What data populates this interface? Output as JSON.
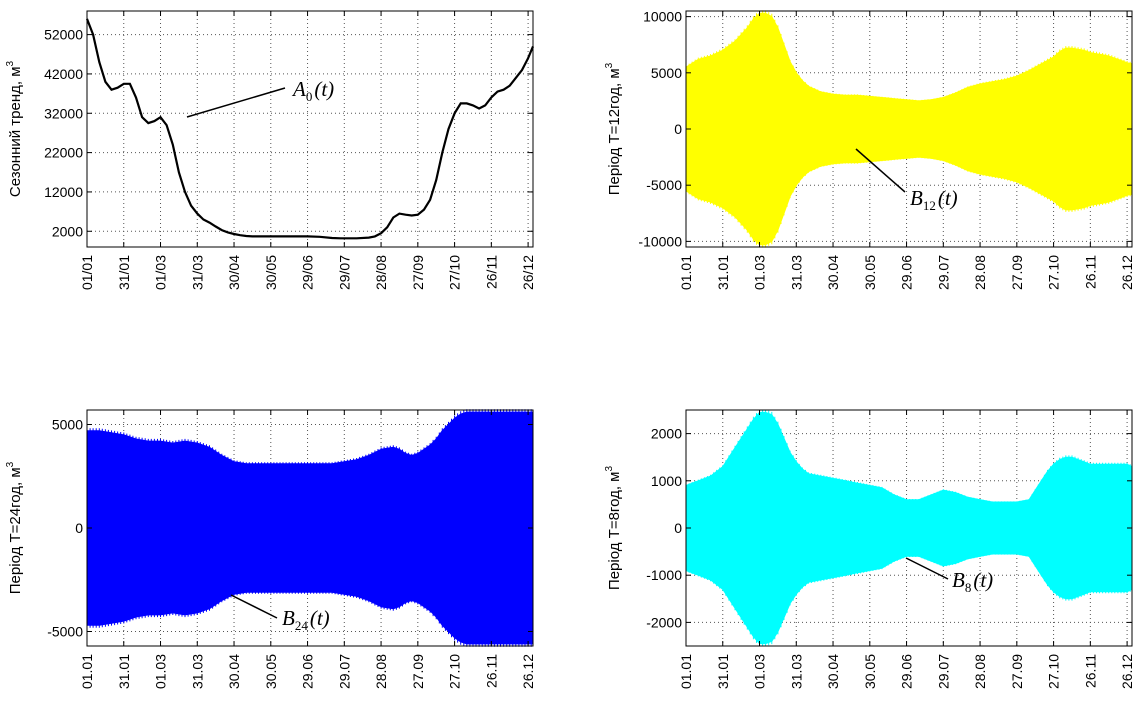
{
  "chart_data": [
    {
      "type": "line",
      "ylabel": "Сезонний тренд, м",
      "ylabel_sup": "3",
      "yticks": [
        2000,
        12000,
        22000,
        32000,
        42000,
        52000
      ],
      "ylim": [
        -2000,
        58000
      ],
      "xticks": [
        "01/01",
        "31/01",
        "01/03",
        "31/03",
        "30/04",
        "30/05",
        "29/06",
        "29/07",
        "28/08",
        "27/09",
        "27/10",
        "26/11",
        "26/12"
      ],
      "color": "#000000",
      "annotation": {
        "text": "A",
        "sub": "0",
        "arg": "(t)"
      },
      "series": [
        {
          "x": [
            0,
            5,
            10,
            15,
            20,
            25,
            30,
            35,
            40,
            45,
            50,
            55,
            60,
            65,
            70,
            75,
            80,
            85,
            90,
            95,
            100,
            105,
            110,
            115,
            120,
            125,
            130,
            135,
            140,
            145,
            150,
            160,
            170,
            180,
            190,
            200,
            207,
            212,
            220,
            230,
            235,
            240,
            245,
            250,
            255,
            260,
            265,
            270,
            275,
            280,
            285,
            290,
            295,
            300,
            305,
            310,
            315,
            320,
            325,
            330,
            335,
            340,
            345,
            350,
            355,
            360,
            364
          ],
          "y": [
            56000,
            52000,
            45000,
            40000,
            38000,
            38500,
            39500,
            39500,
            36000,
            31000,
            29500,
            30000,
            31000,
            29000,
            24000,
            17000,
            12000,
            8500,
            6500,
            5000,
            4200,
            3200,
            2300,
            1700,
            1300,
            1000,
            800,
            700,
            700,
            700,
            700,
            700,
            700,
            700,
            600,
            300,
            200,
            200,
            200,
            400,
            700,
            1500,
            3000,
            5500,
            6500,
            6200,
            6000,
            6200,
            7500,
            10000,
            15000,
            22000,
            28000,
            32000,
            34500,
            34500,
            34000,
            33200,
            34000,
            36000,
            37500,
            38000,
            39000,
            41000,
            43000,
            46000,
            49000
          ]
        }
      ]
    },
    {
      "type": "area",
      "ylabel": "Період Т=12год, м",
      "ylabel_sup": "3",
      "yticks": [
        -10000,
        -5000,
        0,
        5000,
        10000
      ],
      "ylim": [
        -10500,
        10500
      ],
      "xticks": [
        "01.01",
        "31.01",
        "01.03",
        "31.03",
        "30.04",
        "30.05",
        "29.06",
        "29.07",
        "28.08",
        "27.09",
        "27.10",
        "26.11",
        "26.12"
      ],
      "color": "#ffff00",
      "annotation": {
        "text": "B",
        "sub": "12",
        "arg": "(t)"
      },
      "envelope": {
        "x": [
          0,
          10,
          20,
          30,
          40,
          50,
          55,
          60,
          65,
          70,
          75,
          80,
          85,
          90,
          95,
          100,
          110,
          120,
          130,
          140,
          150,
          160,
          170,
          180,
          190,
          200,
          210,
          220,
          230,
          240,
          250,
          260,
          270,
          280,
          290,
          300,
          305,
          310,
          315,
          320,
          325,
          330,
          335,
          340,
          345,
          350,
          355,
          360,
          364
        ],
        "y": [
          5500,
          6200,
          6500,
          7000,
          7800,
          9000,
          9800,
          10300,
          10300,
          10000,
          9000,
          7500,
          6000,
          5000,
          4300,
          3800,
          3300,
          3100,
          3000,
          3000,
          2900,
          2800,
          2700,
          2600,
          2500,
          2600,
          2800,
          3200,
          3700,
          4000,
          4200,
          4400,
          4700,
          5200,
          5800,
          6400,
          6900,
          7200,
          7200,
          7100,
          7000,
          6800,
          6700,
          6600,
          6500,
          6300,
          6100,
          5900,
          5800
        ]
      }
    },
    {
      "type": "area",
      "ylabel": "Період Т=24год, м",
      "ylabel_sup": "3",
      "yticks": [
        -5000,
        0,
        5000
      ],
      "ylim": [
        -5700,
        5700
      ],
      "xticks": [
        "01.01",
        "31.01",
        "01.03",
        "31.03",
        "30.04",
        "30.05",
        "29.06",
        "29.07",
        "28.08",
        "27.09",
        "27.10",
        "26.11",
        "26.12"
      ],
      "color": "#0000ff",
      "annotation": {
        "text": "B",
        "sub": "24",
        "arg": "(t)"
      },
      "envelope": {
        "x": [
          0,
          10,
          20,
          30,
          40,
          50,
          60,
          70,
          80,
          90,
          100,
          110,
          120,
          130,
          140,
          150,
          160,
          170,
          180,
          190,
          200,
          210,
          220,
          230,
          240,
          250,
          255,
          260,
          265,
          270,
          275,
          280,
          285,
          290,
          295,
          300,
          305,
          310,
          315,
          320,
          325,
          330,
          335,
          340,
          345,
          350,
          355,
          360,
          364
        ],
        "y": [
          4700,
          4700,
          4600,
          4500,
          4300,
          4200,
          4200,
          4100,
          4200,
          4100,
          3900,
          3500,
          3200,
          3100,
          3100,
          3100,
          3100,
          3100,
          3100,
          3100,
          3100,
          3200,
          3300,
          3500,
          3800,
          3900,
          3800,
          3600,
          3500,
          3600,
          3800,
          4000,
          4300,
          4700,
          5000,
          5300,
          5500,
          5600,
          5600,
          5600,
          5600,
          5600,
          5600,
          5600,
          5600,
          5600,
          5600,
          5600,
          5600
        ]
      }
    },
    {
      "type": "area",
      "ylabel": "Період Т=8год, м",
      "ylabel_sup": "3",
      "yticks": [
        -2000,
        -1000,
        0,
        1000,
        2000
      ],
      "ylim": [
        -2500,
        2500
      ],
      "xticks": [
        "01.01",
        "31.01",
        "01.03",
        "31.03",
        "30.04",
        "30.05",
        "29.06",
        "29.07",
        "28.08",
        "27.09",
        "27.10",
        "26.11",
        "26.12"
      ],
      "color": "#00ffff",
      "annotation": {
        "text": "B",
        "sub": "8",
        "arg": "(t)"
      },
      "envelope": {
        "x": [
          0,
          10,
          20,
          30,
          40,
          50,
          55,
          60,
          65,
          70,
          75,
          80,
          85,
          90,
          95,
          100,
          110,
          120,
          130,
          140,
          150,
          160,
          170,
          180,
          190,
          200,
          210,
          220,
          230,
          240,
          250,
          260,
          270,
          280,
          285,
          290,
          295,
          300,
          305,
          310,
          315,
          320,
          325,
          330,
          335,
          340,
          345,
          350,
          355,
          360,
          364
        ],
        "y": [
          900,
          1000,
          1100,
          1300,
          1700,
          2100,
          2300,
          2450,
          2450,
          2400,
          2200,
          1900,
          1600,
          1400,
          1250,
          1150,
          1100,
          1050,
          1000,
          950,
          900,
          850,
          700,
          600,
          600,
          700,
          800,
          750,
          650,
          600,
          550,
          550,
          550,
          600,
          800,
          1000,
          1200,
          1350,
          1450,
          1500,
          1500,
          1450,
          1400,
          1350,
          1350,
          1350,
          1350,
          1350,
          1350,
          1350,
          1300
        ]
      }
    }
  ]
}
